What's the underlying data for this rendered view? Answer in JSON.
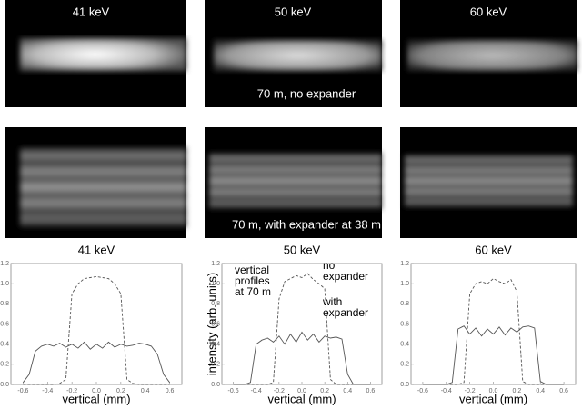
{
  "image_rows": [
    {
      "labels": [
        "41 keV",
        "50 keV",
        "60 keV"
      ],
      "caption": "70 m, no expander"
    },
    {
      "caption": "70 m, with expander at 38 m"
    }
  ],
  "chart_data": [
    {
      "type": "line",
      "title": "41 keV",
      "x_label": "vertical (mm)",
      "x": [
        -0.6,
        -0.55,
        -0.5,
        -0.45,
        -0.4,
        -0.35,
        -0.3,
        -0.25,
        -0.2,
        -0.15,
        -0.1,
        -0.05,
        0,
        0.05,
        0.1,
        0.15,
        0.2,
        0.25,
        0.3,
        0.35,
        0.4,
        0.45,
        0.5,
        0.55,
        0.6
      ],
      "series": [
        {
          "color": "#555555",
          "dash": false,
          "values": [
            0.02,
            0.1,
            0.33,
            0.38,
            0.4,
            0.38,
            0.41,
            0.37,
            0.4,
            0.36,
            0.42,
            0.35,
            0.4,
            0.36,
            0.42,
            0.37,
            0.4,
            0.38,
            0.39,
            0.41,
            0.4,
            0.38,
            0.3,
            0.1,
            0.02
          ]
        },
        {
          "color": "#555555",
          "dash": true,
          "values": [
            0,
            0,
            0,
            0,
            0,
            0,
            0.01,
            0.05,
            0.9,
            1.0,
            1.05,
            1.06,
            1.07,
            1.06,
            1.05,
            1.0,
            0.9,
            0.05,
            0.01,
            0,
            0,
            0,
            0,
            0,
            0
          ]
        }
      ],
      "xlim": [
        -0.7,
        0.7
      ],
      "xticks": [
        -0.6,
        -0.4,
        -0.2,
        {
          "value": 0,
          "label": "0.0"
        },
        0.2,
        0.4,
        0.6
      ],
      "ylim": [
        0,
        1.2
      ],
      "yticks": [
        {
          "value": 0,
          "label": "0.0"
        },
        0.2,
        0.4,
        0.6,
        0.8,
        {
          "value": 1,
          "label": "1.0"
        },
        1.2
      ]
    },
    {
      "type": "line",
      "title": "50 keV",
      "x_label": "vertical (mm)",
      "y_label": "intensity (arb. units)",
      "annotations": [
        "vertical",
        "profiles",
        "at 70 m",
        "no",
        "expander",
        "with",
        "expander"
      ],
      "x": [
        -0.6,
        -0.55,
        -0.5,
        -0.45,
        -0.4,
        -0.35,
        -0.3,
        -0.25,
        -0.2,
        -0.15,
        -0.1,
        -0.05,
        0,
        0.05,
        0.1,
        0.15,
        0.2,
        0.25,
        0.3,
        0.35,
        0.4,
        0.45,
        0.5,
        0.55,
        0.6
      ],
      "series": [
        {
          "color": "#555555",
          "dash": false,
          "values": [
            0,
            0,
            0,
            0.02,
            0.4,
            0.44,
            0.46,
            0.42,
            0.48,
            0.4,
            0.5,
            0.42,
            0.52,
            0.44,
            0.5,
            0.42,
            0.48,
            0.46,
            0.47,
            0.45,
            0.1,
            0,
            0,
            0,
            0
          ]
        },
        {
          "color": "#555555",
          "dash": true,
          "values": [
            0,
            0,
            0,
            0,
            0,
            0,
            0,
            0.02,
            0.85,
            1.02,
            1.05,
            1.08,
            1.06,
            1.1,
            1.04,
            1.0,
            0.95,
            0.05,
            0,
            0,
            0,
            0,
            0,
            0,
            0
          ]
        }
      ],
      "xlim": [
        -0.7,
        0.7
      ],
      "xticks": [
        -0.6,
        -0.4,
        -0.2,
        {
          "value": 0,
          "label": "0.0"
        },
        0.2,
        0.4,
        0.6
      ],
      "ylim": [
        0,
        1.2
      ],
      "yticks": [
        {
          "value": 0,
          "label": "0.0"
        },
        0.2,
        0.4,
        0.6,
        0.8,
        {
          "value": 1,
          "label": "1.0"
        },
        1.2
      ]
    },
    {
      "type": "line",
      "title": "60 keV",
      "x_label": "vertical (mm)",
      "x": [
        -0.6,
        -0.55,
        -0.5,
        -0.45,
        -0.4,
        -0.35,
        -0.3,
        -0.25,
        -0.2,
        -0.15,
        -0.1,
        -0.05,
        0,
        0.05,
        0.1,
        0.15,
        0.2,
        0.25,
        0.3,
        0.35,
        0.4,
        0.45,
        0.5,
        0.55,
        0.6
      ],
      "series": [
        {
          "color": "#555555",
          "dash": false,
          "values": [
            0,
            0,
            0,
            0,
            0,
            0.02,
            0.55,
            0.58,
            0.5,
            0.56,
            0.48,
            0.55,
            0.5,
            0.57,
            0.49,
            0.56,
            0.52,
            0.57,
            0.58,
            0.56,
            0.03,
            0,
            0,
            0,
            0
          ]
        },
        {
          "color": "#555555",
          "dash": true,
          "values": [
            0,
            0,
            0,
            0,
            0,
            0,
            0,
            0.02,
            0.9,
            1.0,
            1.02,
            1.0,
            1.05,
            1.02,
            1.0,
            1.04,
            0.92,
            0.03,
            0,
            0,
            0,
            0,
            0,
            0,
            0
          ]
        }
      ],
      "xlim": [
        -0.7,
        0.7
      ],
      "xticks": [
        -0.6,
        -0.4,
        -0.2,
        {
          "value": 0,
          "label": "0.0"
        },
        0.2,
        0.4,
        0.6
      ],
      "ylim": [
        0,
        1.2
      ],
      "yticks": [
        {
          "value": 0,
          "label": "0.0"
        },
        0.2,
        0.4,
        0.6,
        0.8,
        {
          "value": 1,
          "label": "1.0"
        },
        1.2
      ]
    }
  ]
}
